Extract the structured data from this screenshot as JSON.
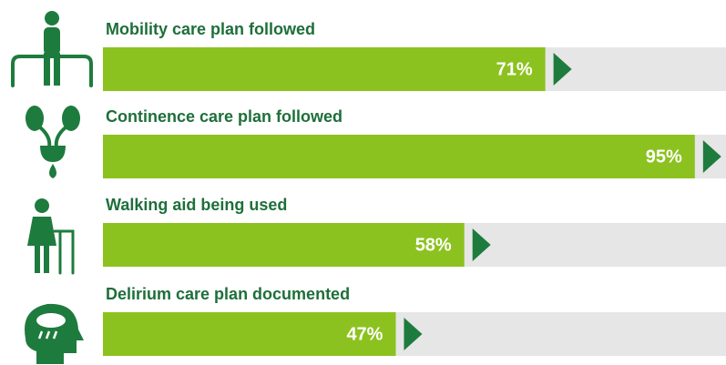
{
  "chart_data": {
    "type": "bar",
    "orientation": "horizontal",
    "categories": [
      "Mobility care plan followed",
      "Continence care plan followed",
      "Walking aid being used",
      "Delirium care plan documented"
    ],
    "values": [
      71,
      95,
      58,
      47
    ],
    "value_labels": [
      "71%",
      "95%",
      "58%",
      "47%"
    ],
    "color": "#8cc21f",
    "track_color": "#e6e6e6",
    "marker_color": "#1e7b3e",
    "xlim": [
      0,
      100
    ]
  }
}
